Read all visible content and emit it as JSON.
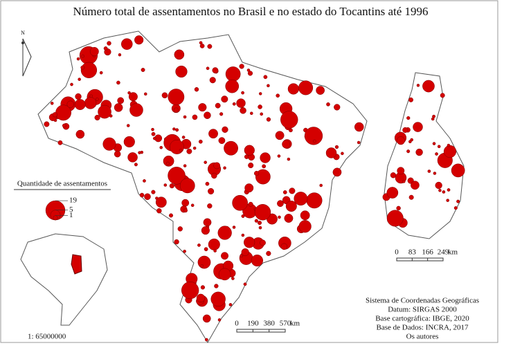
{
  "title": "Número total de assentamentos no Brasil e no estado do Tocantins até 1996",
  "north": "N",
  "legend": {
    "title": "Quantidade de assentamentos",
    "values": [
      19,
      5,
      1
    ]
  },
  "brazil_scale": {
    "ticks": [
      0,
      190,
      380,
      570
    ],
    "unit": "km"
  },
  "tocantins_scale": {
    "ticks": [
      0,
      83,
      166,
      249
    ],
    "unit": "km"
  },
  "inset_scale": "1: 65000000",
  "info": [
    "Sistema de Coordenadas Geográficas",
    "Datum: SIRGAS 2000",
    "Base cartográfica: IBGE, 2020",
    "Base de Dados: INCRA, 2017",
    "Os autores"
  ]
}
